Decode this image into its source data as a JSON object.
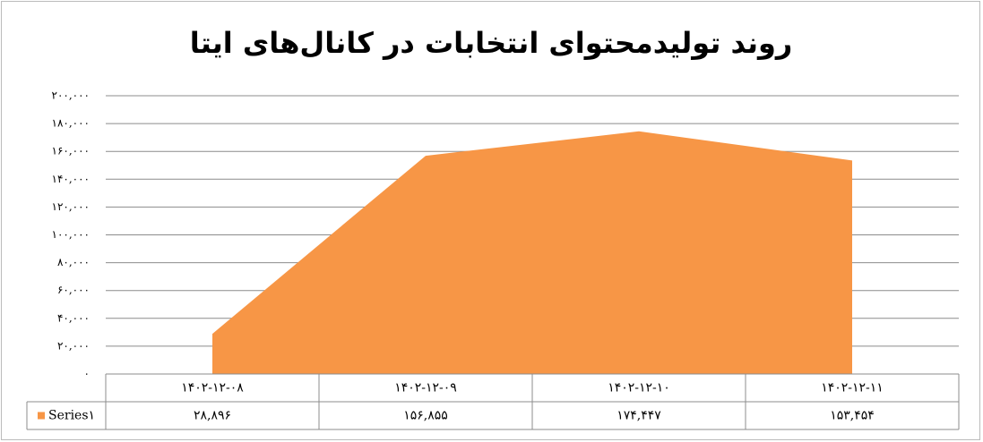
{
  "chart_data": {
    "type": "area",
    "title": "روند تولیدمحتوای انتخابات در کانال‌های ایتا",
    "categories": [
      "۱۴۰۲-۱۲-۰۸",
      "۱۴۰۲-۱۲-۰۹",
      "۱۴۰۲-۱۲-۱۰",
      "۱۴۰۲-۱۲-۱۱"
    ],
    "series": [
      {
        "name": "Series۱",
        "color": "#f79646",
        "values": [
          28896,
          156855,
          174447,
          153454
        ],
        "value_labels": [
          "۲۸,۸۹۶",
          "۱۵۶,۸۵۵",
          "۱۷۴,۴۴۷",
          "۱۵۳,۴۵۴"
        ]
      }
    ],
    "ylim": [
      0,
      200000
    ],
    "yticks": [
      {
        "value": 0,
        "label": "۰"
      },
      {
        "value": 20000,
        "label": "۲۰,۰۰۰"
      },
      {
        "value": 40000,
        "label": "۴۰,۰۰۰"
      },
      {
        "value": 60000,
        "label": "۶۰,۰۰۰"
      },
      {
        "value": 80000,
        "label": "۸۰,۰۰۰"
      },
      {
        "value": 100000,
        "label": "۱۰۰,۰۰۰"
      },
      {
        "value": 120000,
        "label": "۱۲۰,۰۰۰"
      },
      {
        "value": 140000,
        "label": "۱۴۰,۰۰۰"
      },
      {
        "value": 160000,
        "label": "۱۶۰,۰۰۰"
      },
      {
        "value": 180000,
        "label": "۱۸۰,۰۰۰"
      },
      {
        "value": 200000,
        "label": "۲۰۰,۰۰۰"
      }
    ],
    "grid": true,
    "data_table": true
  }
}
